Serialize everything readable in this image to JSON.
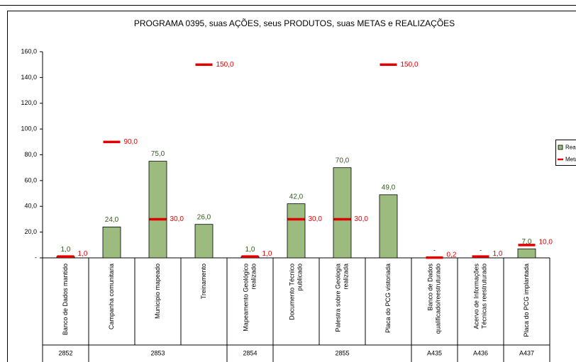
{
  "chart_data": {
    "type": "bar",
    "title": "PROGRAMA 0395, suas AÇÕES, seus PRODUTOS, suas METAS e REALIZAÇÕES",
    "categories": [
      [
        "Banco de Dados mantido"
      ],
      [
        "Campanha comunitaria"
      ],
      [
        "Municipio mapeado"
      ],
      [
        "Treinamento"
      ],
      [
        "Mapeamento Geológico",
        "realizado"
      ],
      [
        "Documento Técnico",
        "publicado"
      ],
      [
        "Palestra sobre Geologia",
        "realizada"
      ],
      [
        "Placa do PCG vistoriada"
      ],
      [
        "Banco de Dados",
        "qualificado/reestruturado"
      ],
      [
        "Acervo de Informações",
        "Técnicas reestruturado"
      ],
      [
        "Placa do PCG implantada"
      ]
    ],
    "groups": [
      {
        "label": "2852",
        "span": 1
      },
      {
        "label": "2853",
        "span": 3
      },
      {
        "label": "2854",
        "span": 1
      },
      {
        "label": "2855",
        "span": 3
      },
      {
        "label": "A435",
        "span": 1
      },
      {
        "label": "A436",
        "span": 1
      },
      {
        "label": "A437",
        "span": 1
      }
    ],
    "series": [
      {
        "name": "Realizado",
        "color": "#9bbb7f",
        "label_color": "#2e5a1c",
        "values": [
          1,
          24,
          75,
          26,
          1,
          42,
          70,
          49,
          0,
          0,
          7
        ],
        "value_labels": [
          "1,0",
          "24,0",
          "75,0",
          "26,0",
          "1,0",
          "42,0",
          "70,0",
          "49,0",
          "-",
          "-",
          "7,0"
        ]
      },
      {
        "name": "Meta",
        "color": "#e00000",
        "label_color": "#e00000",
        "values": [
          1,
          90,
          30,
          150,
          1,
          30,
          30,
          150,
          0.2,
          1,
          10
        ],
        "value_labels": [
          "1,0",
          "90,0",
          "30,0",
          "150,0",
          "1,0",
          "30,0",
          "30,0",
          "150,0",
          "0,2",
          "1,0",
          "10,0"
        ]
      }
    ],
    "ylim": [
      0,
      160
    ],
    "yticks": [
      {
        "value": 0,
        "label": "-"
      },
      {
        "value": 20,
        "label": "20,0"
      },
      {
        "value": 40,
        "label": "40,0"
      },
      {
        "value": 60,
        "label": "60,0"
      },
      {
        "value": 80,
        "label": "80,0"
      },
      {
        "value": 100,
        "label": "100,0"
      },
      {
        "value": 120,
        "label": "120,0"
      },
      {
        "value": 140,
        "label": "140,0"
      },
      {
        "value": 160,
        "label": "160,0"
      }
    ]
  }
}
